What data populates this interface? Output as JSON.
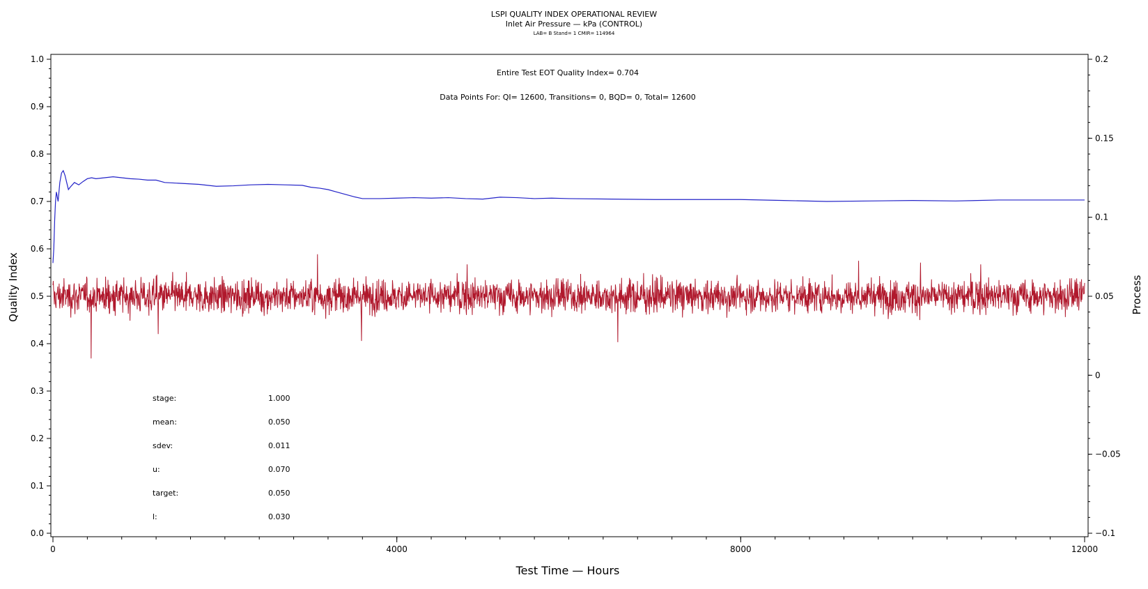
{
  "header": {
    "title": "LSPI QUALITY INDEX OPERATIONAL REVIEW",
    "subtitle": "Inlet Air Pressure — kPa (CONTROL)",
    "subsubtitle": "LAB= B Stand= 1 CMIR= 114964"
  },
  "annotations": {
    "eot_quality_index": "Entire Test EOT Quality Index=   0.704",
    "data_points": "Data Points For: QI= 12600, Transitions=      0, BQD=      0, Total= 12600"
  },
  "stats": [
    {
      "label": "stage:",
      "value": "1.000"
    },
    {
      "label": "mean:",
      "value": "0.050"
    },
    {
      "label": "sdev:",
      "value": "0.011"
    },
    {
      "label": "u:",
      "value": "0.070"
    },
    {
      "label": "target:",
      "value": "0.050"
    },
    {
      "label": "l:",
      "value": "0.030"
    }
  ],
  "colors": {
    "quality_index": "#2323c8",
    "process": "#b0182c",
    "axis": "#000000",
    "background": "#ffffff"
  },
  "chart_data": {
    "type": "line",
    "xlabel": "Test Time — Hours",
    "ylabel": "Quality Index",
    "y2label": "Process",
    "xlim": [
      0,
      12000
    ],
    "ylim": [
      0.0,
      1.0
    ],
    "y2lim": [
      -0.1,
      0.2
    ],
    "x_ticks": [
      0,
      4000,
      8000,
      12000
    ],
    "y_ticks": [
      0.0,
      0.1,
      0.2,
      0.3,
      0.4,
      0.5,
      0.6,
      0.7,
      0.8,
      0.9,
      1.0
    ],
    "y2_ticks": [
      -0.1,
      -0.05,
      0,
      0.05,
      0.1,
      0.15,
      0.2
    ],
    "x_tick_labels": [
      "0",
      "4000",
      "8000",
      "12000"
    ],
    "y_tick_labels": [
      "0.0",
      "0.1",
      "0.2",
      "0.3",
      "0.4",
      "0.5",
      "0.6",
      "0.7",
      "0.8",
      "0.9",
      "1.0"
    ],
    "y2_tick_labels": [
      "−0.1",
      "−0.05",
      "0",
      "0.05",
      "0.1",
      "0.15",
      "0.2"
    ],
    "grid": false,
    "series": [
      {
        "axis": "left",
        "x": [
          0,
          10,
          20,
          30,
          40,
          60,
          80,
          100,
          120,
          140,
          160,
          180,
          200,
          250,
          300,
          350,
          400,
          450,
          500,
          600,
          700,
          800,
          900,
          1000,
          1100,
          1200,
          1300,
          1500,
          1700,
          1900,
          2100,
          2300,
          2500,
          2700,
          2900,
          3000,
          3100,
          3200,
          3300,
          3400,
          3500,
          3600,
          3800,
          4000,
          4200,
          4400,
          4600,
          4800,
          5000,
          5200,
          5400,
          5600,
          5800,
          6000,
          6500,
          7000,
          7500,
          8000,
          8500,
          9000,
          9500,
          10000,
          10500,
          11000,
          11500,
          12000
        ],
        "y": [
          0.57,
          0.6,
          0.66,
          0.7,
          0.72,
          0.7,
          0.74,
          0.76,
          0.765,
          0.755,
          0.74,
          0.725,
          0.73,
          0.74,
          0.735,
          0.742,
          0.748,
          0.75,
          0.748,
          0.75,
          0.752,
          0.75,
          0.748,
          0.747,
          0.745,
          0.745,
          0.74,
          0.738,
          0.736,
          0.732,
          0.733,
          0.735,
          0.736,
          0.735,
          0.734,
          0.73,
          0.728,
          0.725,
          0.72,
          0.715,
          0.71,
          0.706,
          0.706,
          0.707,
          0.708,
          0.707,
          0.708,
          0.706,
          0.705,
          0.709,
          0.708,
          0.706,
          0.707,
          0.706,
          0.705,
          0.704,
          0.704,
          0.704,
          0.702,
          0.7,
          0.701,
          0.702,
          0.701,
          0.703,
          0.703,
          0.703
        ]
      },
      {
        "axis": "right",
        "x": [
          0,
          12000
        ],
        "y": [
          0.05,
          0.05
        ]
      }
    ]
  }
}
